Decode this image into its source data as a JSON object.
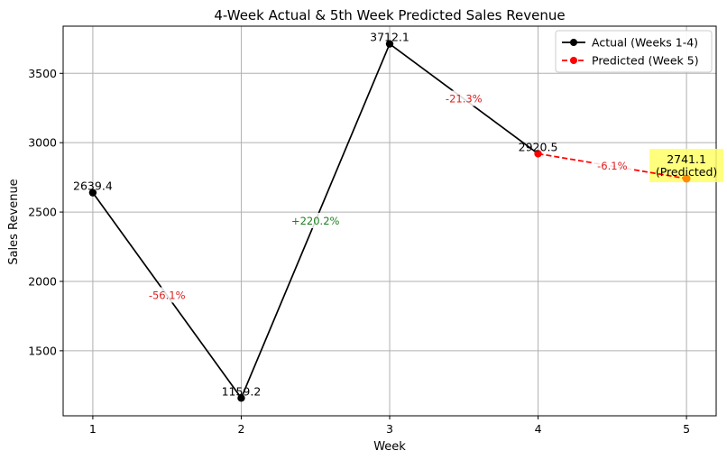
{
  "chart_data": {
    "type": "line",
    "title": "4-Week Actual & 5th Week Predicted Sales Revenue",
    "xlabel": "Week",
    "ylabel": "Sales Revenue",
    "x_ticks": [
      1,
      2,
      3,
      4,
      5
    ],
    "y_ticks": [
      1500,
      2000,
      2500,
      3000,
      3500
    ],
    "xlim": [
      0.8,
      5.2
    ],
    "ylim": [
      1031,
      3840
    ],
    "grid": true,
    "legend_position": "top-right",
    "series": [
      {
        "name": "Actual (Weeks 1-4)",
        "color": "#000000",
        "style": "solid",
        "x": [
          1,
          2,
          3,
          4
        ],
        "y": [
          2639.4,
          1159.2,
          3712.1,
          2920.5
        ],
        "labels": [
          "2639.4",
          "1159.2",
          "3712.1",
          "2920.5"
        ]
      },
      {
        "name": "Predicted (Week 5)",
        "color": "#ff0000",
        "style": "dashed",
        "x": [
          4,
          5
        ],
        "y": [
          2920.5,
          2741.1
        ]
      }
    ],
    "predicted_point": {
      "x": 5,
      "y": 2741.1,
      "label_lines": [
        "2741.1",
        "(Predicted)"
      ],
      "marker_color": "#ff8c00",
      "label_color": "#ff0000",
      "highlight_color": "#ffff66"
    },
    "changes": [
      {
        "x": 1.5,
        "y": 1899.3,
        "text": "-56.1%",
        "color": "#e02020"
      },
      {
        "x": 2.5,
        "y": 2435.7,
        "text": "+220.2%",
        "color": "#208020"
      },
      {
        "x": 3.5,
        "y": 3316.3,
        "text": "-21.3%",
        "color": "#e02020"
      },
      {
        "x": 4.5,
        "y": 2830.8,
        "text": "-6.1%",
        "color": "#e02020"
      }
    ]
  }
}
